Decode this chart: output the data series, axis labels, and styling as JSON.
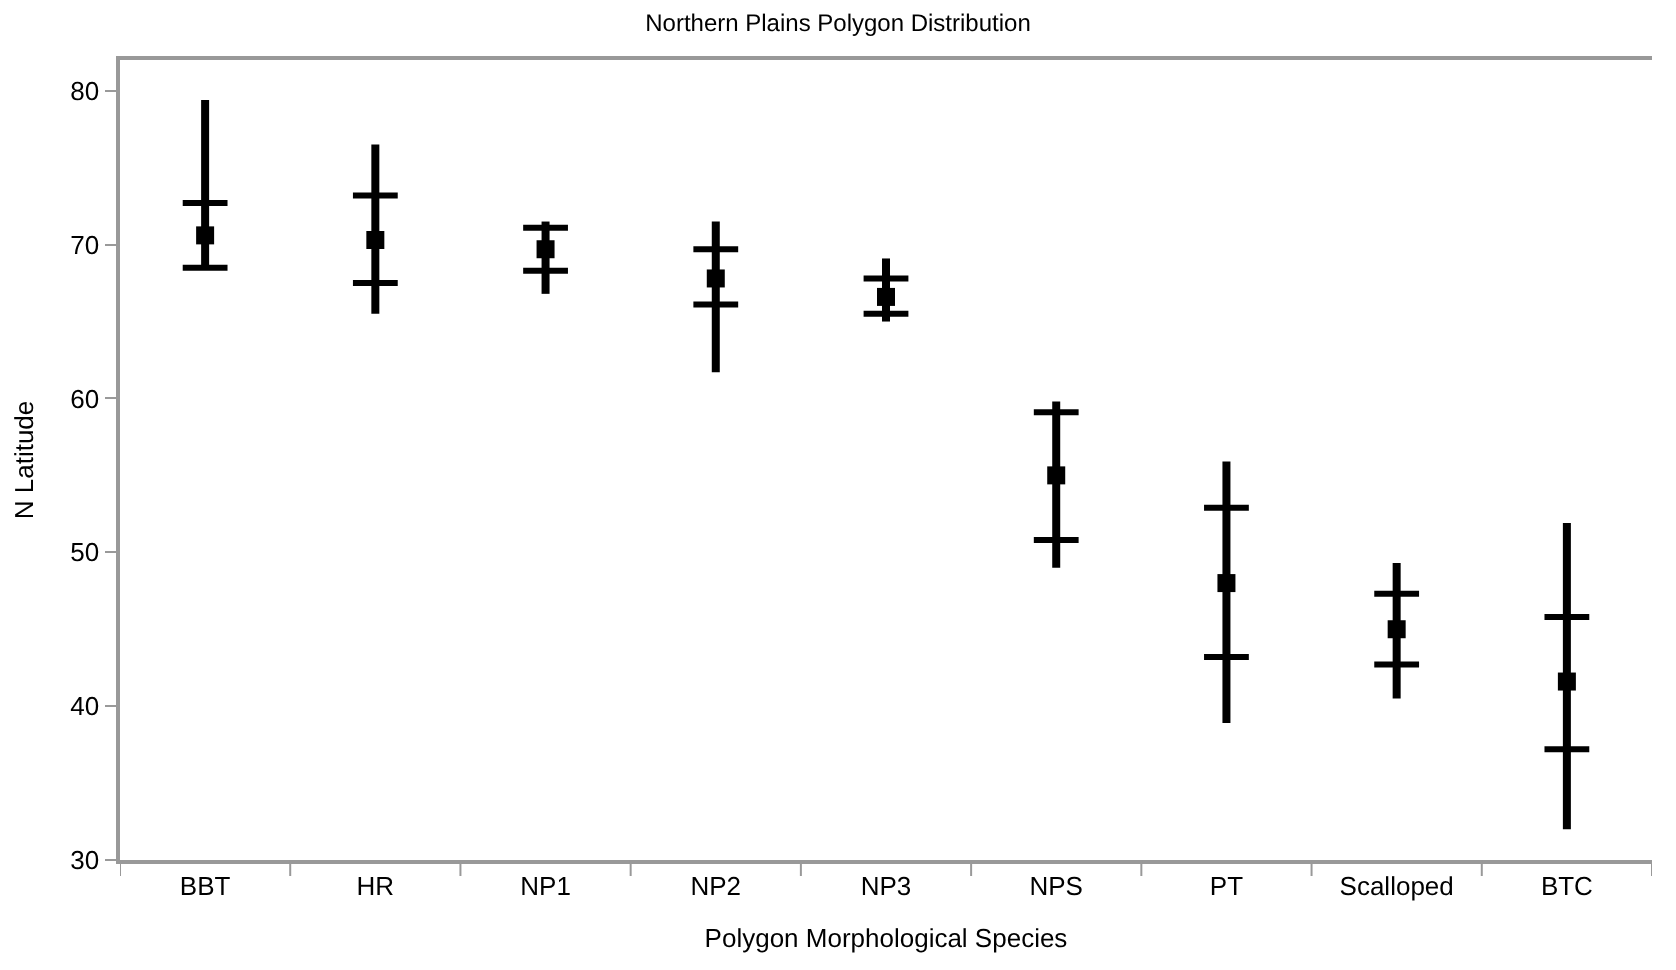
{
  "chart_data": {
    "type": "box",
    "title": "Northern Plains Polygon Distribution",
    "xlabel": "Polygon Morphological Species",
    "ylabel": "N Latitude",
    "categories": [
      "BBT",
      "HR",
      "NP1",
      "NP2",
      "NP3",
      "NPS",
      "PT",
      "Scalloped",
      "BTC"
    ],
    "color": "#000000",
    "ylim": [
      30,
      82
    ],
    "yticks": [
      30,
      40,
      50,
      60,
      70,
      80
    ],
    "marker": "square",
    "boxes": [
      {
        "low": 68.4,
        "q1": 68.5,
        "median": 70.6,
        "q3": 72.7,
        "high": 79.4
      },
      {
        "low": 65.5,
        "q1": 67.5,
        "median": 70.3,
        "q3": 73.2,
        "high": 76.5
      },
      {
        "low": 66.8,
        "q1": 68.3,
        "median": 69.7,
        "q3": 71.1,
        "high": 71.5
      },
      {
        "low": 61.7,
        "q1": 66.1,
        "median": 67.8,
        "q3": 69.7,
        "high": 71.5
      },
      {
        "low": 65.0,
        "q1": 65.5,
        "median": 66.6,
        "q3": 67.8,
        "high": 69.1
      },
      {
        "low": 49.0,
        "q1": 50.8,
        "median": 55.0,
        "q3": 59.1,
        "high": 59.8
      },
      {
        "low": 38.9,
        "q1": 43.2,
        "median": 48.0,
        "q3": 52.9,
        "high": 55.9
      },
      {
        "low": 40.5,
        "q1": 42.7,
        "median": 45.0,
        "q3": 47.3,
        "high": 49.3
      },
      {
        "low": 32.0,
        "q1": 37.2,
        "median": 41.6,
        "q3": 45.8,
        "high": 51.9
      }
    ]
  }
}
